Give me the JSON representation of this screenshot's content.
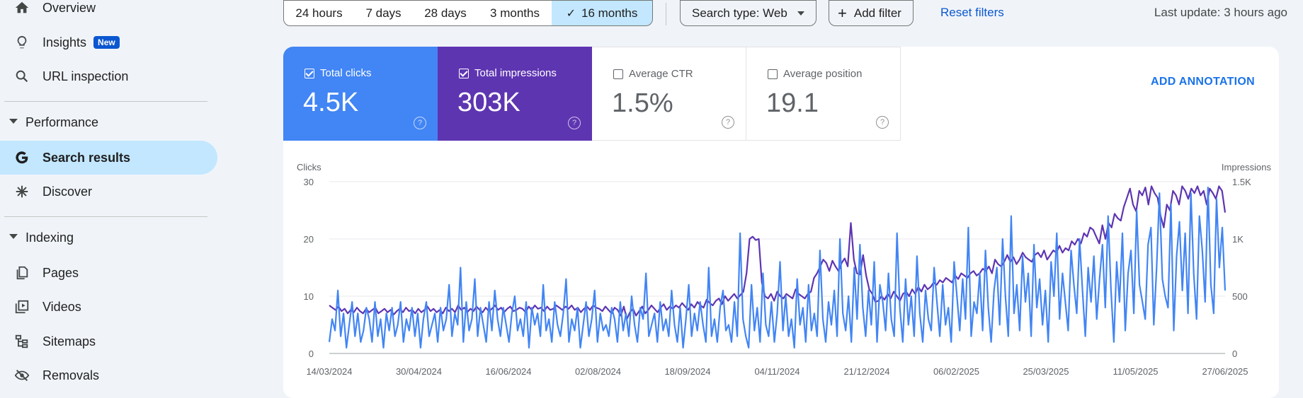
{
  "sidebar": {
    "overview": {
      "label": "Overview",
      "icon": "home-icon"
    },
    "insights": {
      "label": "Insights",
      "badge": "New",
      "icon": "lightbulb-icon"
    },
    "url_inspection": {
      "label": "URL inspection",
      "icon": "search-icon"
    },
    "performance_section": "Performance",
    "search_results": {
      "label": "Search results",
      "icon": "google-g-icon"
    },
    "discover": {
      "label": "Discover",
      "icon": "asterisk-icon"
    },
    "indexing_section": "Indexing",
    "pages": {
      "label": "Pages",
      "icon": "pages-icon"
    },
    "videos": {
      "label": "Videos",
      "icon": "video-icon"
    },
    "sitemaps": {
      "label": "Sitemaps",
      "icon": "sitemap-icon"
    },
    "removals": {
      "label": "Removals",
      "icon": "eye-off-icon"
    }
  },
  "toolbar": {
    "ranges": [
      "24 hours",
      "7 days",
      "28 days",
      "3 months",
      "16 months"
    ],
    "selected_range": "16 months",
    "search_type": "Search type: Web",
    "add_filter": "Add filter",
    "reset_filters": "Reset filters",
    "last_update": "Last update: 3 hours ago"
  },
  "metrics": {
    "clicks": {
      "label": "Total clicks",
      "value": "4.5K",
      "checked": true,
      "color": "#4285f4"
    },
    "impressions": {
      "label": "Total impressions",
      "value": "303K",
      "checked": true,
      "color": "#5e35b1"
    },
    "ctr": {
      "label": "Average CTR",
      "value": "1.5%",
      "checked": false
    },
    "position": {
      "label": "Average position",
      "value": "19.1",
      "checked": false
    }
  },
  "add_annotation": "ADD ANNOTATION",
  "chart_data": {
    "type": "line",
    "x_ticks": [
      "14/03/2024",
      "30/04/2024",
      "16/06/2024",
      "02/08/2024",
      "18/09/2024",
      "04/11/2024",
      "21/12/2024",
      "06/02/2025",
      "25/03/2025",
      "11/05/2025",
      "27/06/2025"
    ],
    "y_left_label": "Clicks",
    "y_left_ticks": [
      "0",
      "10",
      "20",
      "30"
    ],
    "y_left_range": [
      0,
      30
    ],
    "y_right_label": "Impressions",
    "y_right_ticks": [
      "0",
      "500",
      "1K",
      "1.5K"
    ],
    "y_right_range": [
      0,
      1500
    ],
    "series": [
      {
        "name": "Total clicks",
        "axis": "left",
        "color": "#4285f4",
        "values": [
          2,
          6,
          4,
          11,
          3,
          7,
          1,
          5,
          9,
          3,
          7,
          2,
          4,
          8,
          6,
          2,
          9,
          3,
          6,
          1,
          7,
          4,
          8,
          3,
          5,
          9,
          2,
          6,
          4,
          8,
          3,
          7,
          1,
          6,
          9,
          3,
          5,
          7,
          2,
          8,
          4,
          6,
          12,
          3,
          7,
          5,
          15,
          2,
          9,
          4,
          6,
          13,
          3,
          8,
          5,
          2,
          9,
          4,
          11,
          6,
          3,
          8,
          5,
          2,
          7,
          10,
          4,
          6,
          3,
          9,
          1,
          8,
          5,
          7,
          3,
          12,
          4,
          6,
          2,
          9,
          5,
          3,
          7,
          13,
          2,
          6,
          4,
          8,
          1,
          5,
          9,
          3,
          6,
          11,
          2,
          7,
          4,
          5,
          3,
          8,
          6,
          2,
          9,
          4,
          7,
          3,
          10,
          5,
          2,
          8,
          6,
          14,
          3,
          5,
          7,
          2,
          9,
          4,
          6,
          3,
          11,
          5,
          2,
          8,
          1,
          6,
          12,
          3,
          7,
          4,
          9,
          5,
          2,
          15,
          3,
          6,
          2,
          8,
          11,
          4,
          5,
          2,
          9,
          3,
          21,
          6,
          3,
          1,
          12,
          4,
          8,
          2,
          14,
          5,
          3,
          9,
          2,
          7,
          16,
          4,
          10,
          3,
          6,
          1,
          13,
          5,
          8,
          2,
          12,
          4,
          7,
          3,
          18,
          6,
          2,
          9,
          5,
          11,
          3,
          20,
          7,
          4,
          10,
          2,
          15,
          6,
          19,
          8,
          3,
          11,
          5,
          16,
          2,
          12,
          9,
          4,
          14,
          6,
          3,
          21,
          8,
          2,
          13,
          5,
          10,
          3,
          17,
          7,
          2,
          11,
          6,
          4,
          15,
          9,
          3,
          12,
          5,
          8,
          2,
          16,
          10,
          4,
          13,
          6,
          22,
          3,
          9,
          7,
          14,
          4,
          18,
          8,
          2,
          11,
          15,
          5,
          20,
          10,
          3,
          24,
          7,
          12,
          4,
          17,
          9,
          14,
          3,
          19,
          8,
          13,
          5,
          11,
          2,
          16,
          10,
          21,
          6,
          14,
          9,
          4,
          18,
          12,
          7,
          20,
          11,
          3,
          15,
          9,
          17,
          6,
          13,
          19,
          8,
          24,
          11,
          2,
          16,
          9,
          21,
          4,
          14,
          18,
          7,
          25,
          12,
          9,
          6,
          19,
          22,
          5,
          15,
          28,
          13,
          10,
          8,
          26,
          4,
          17,
          23,
          11,
          21,
          7,
          28,
          14,
          6,
          24,
          18,
          9,
          29,
          12,
          7,
          27,
          15,
          22,
          11
        ],
        "note_values": "approximate daily clicks read from chart"
      },
      {
        "name": "Total impressions",
        "axis": "right",
        "color": "#5e35b1",
        "values": [
          420,
          400,
          380,
          410,
          370,
          390,
          350,
          380,
          360,
          400,
          370,
          350,
          390,
          360,
          380,
          400,
          350,
          370,
          390,
          360,
          380,
          340,
          370,
          390,
          360,
          400,
          370,
          380,
          350,
          390,
          360,
          380,
          410,
          370,
          390,
          360,
          380,
          350,
          400,
          370,
          390,
          360,
          420,
          380,
          400,
          360,
          390,
          370,
          410,
          380,
          360,
          400,
          370,
          390,
          420,
          380,
          400,
          360,
          390,
          410,
          370,
          380,
          400,
          390,
          360,
          410,
          380,
          420,
          390,
          400,
          370,
          410,
          380,
          390,
          420,
          400,
          380,
          410,
          390,
          420,
          380,
          400,
          360,
          390,
          410,
          380,
          420,
          400,
          390,
          370,
          410,
          380,
          350,
          400,
          380,
          330,
          410,
          300,
          360,
          390,
          330,
          370,
          410,
          350,
          380,
          420,
          390,
          360,
          400,
          430,
          380,
          410,
          390,
          420,
          400,
          440,
          410,
          380,
          430,
          400,
          450,
          420,
          400,
          470,
          440,
          420,
          460,
          480,
          430,
          500,
          460,
          490,
          520,
          480,
          510,
          540,
          700,
          1000,
          1020,
          990,
          1000,
          620,
          500,
          480,
          520,
          460,
          540,
          500,
          480,
          520,
          500,
          480,
          560,
          520,
          500,
          480,
          520,
          540,
          660,
          700,
          760,
          820,
          790,
          720,
          810,
          760,
          720,
          790,
          830,
          760,
          1140,
          820,
          700,
          690,
          860,
          680,
          560,
          520,
          450,
          460,
          500,
          470,
          520,
          480,
          540,
          500,
          460,
          520,
          540,
          500,
          560,
          520,
          580,
          540,
          600,
          560,
          580,
          620,
          600,
          640,
          620,
          660,
          640,
          620,
          680,
          650,
          700,
          680,
          660,
          700,
          720,
          680,
          700,
          740,
          720,
          760,
          700,
          820,
          780,
          760,
          800,
          860,
          800,
          840,
          780,
          820,
          880,
          840,
          820,
          800,
          860,
          880,
          840,
          900,
          820,
          860,
          900,
          880,
          940,
          880,
          920,
          900,
          980,
          950,
          1000,
          960,
          1050,
          1020,
          1100,
          1080,
          1020,
          960,
          1120,
          1000,
          1140,
          1100,
          1220,
          1180,
          1160,
          1280,
          1360,
          1440,
          1300,
          1240,
          1420,
          1380,
          1450,
          1300,
          1460,
          1400,
          1360,
          1200,
          1100,
          1300,
          1250,
          1420,
          1380,
          1300,
          1460,
          1420,
          1350,
          1440,
          1400,
          1460,
          1380,
          1420,
          1300,
          1440,
          1400,
          1350,
          1460,
          1420,
          1230
        ]
      }
    ]
  }
}
